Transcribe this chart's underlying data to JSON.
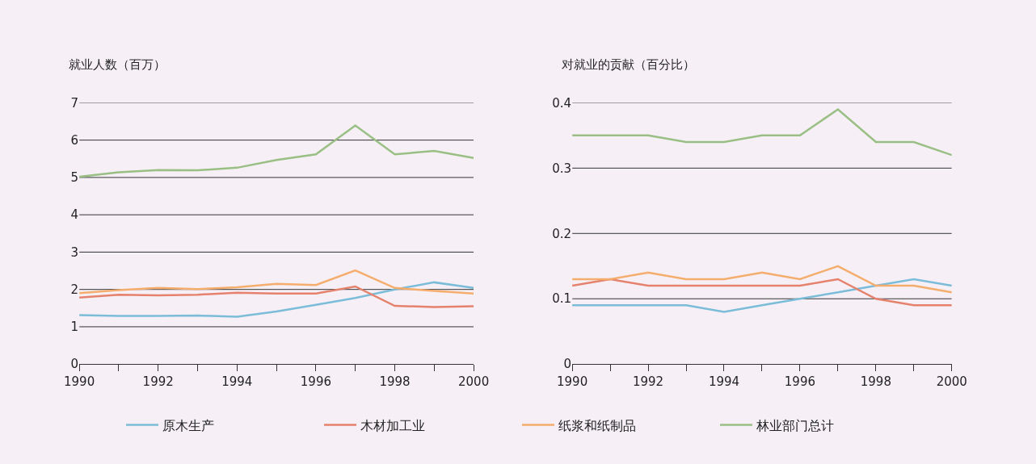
{
  "chart_data": [
    {
      "type": "line",
      "ylabel": "就业人数（百万）",
      "x": [
        1990,
        1991,
        1992,
        1993,
        1994,
        1995,
        1996,
        1997,
        1998,
        1999,
        2000
      ],
      "xlim": [
        1990,
        2000
      ],
      "xticks": [
        1990,
        {
          "value": 1991,
          "label": null
        },
        1992,
        {
          "value": 1993,
          "label": null
        },
        1994,
        {
          "value": 1995,
          "label": null
        },
        1996,
        {
          "value": 1997,
          "label": null
        },
        1998,
        {
          "value": 1999,
          "label": null
        },
        2000
      ],
      "ylim": [
        0,
        7
      ],
      "yticks": [
        0,
        1,
        2,
        3,
        4,
        5,
        6,
        7
      ],
      "grid": "y",
      "legend": "bottom",
      "marker": "none",
      "line_style": "solid",
      "series": [
        {
          "name": "原木生产",
          "color": "#7bbcd9",
          "values": [
            1.31,
            1.29,
            1.29,
            1.3,
            1.27,
            1.41,
            1.59,
            1.77,
            2.0,
            2.19,
            2.04
          ]
        },
        {
          "name": "木材加工业",
          "color": "#e5826d",
          "values": [
            1.78,
            1.86,
            1.84,
            1.86,
            1.91,
            1.89,
            1.89,
            2.08,
            1.56,
            1.53,
            1.55
          ]
        },
        {
          "name": "纸浆和纸制品",
          "color": "#f5ad6d",
          "values": [
            1.9,
            1.98,
            2.04,
            2.01,
            2.06,
            2.15,
            2.12,
            2.51,
            2.04,
            1.96,
            1.89
          ]
        },
        {
          "name": "林业部门总计",
          "color": "#99bf84",
          "values": [
            5.02,
            5.14,
            5.2,
            5.19,
            5.26,
            5.47,
            5.62,
            6.39,
            5.62,
            5.71,
            5.52
          ]
        }
      ]
    },
    {
      "type": "line",
      "ylabel": "对就业的贡献（百分比）",
      "x": [
        1990,
        1991,
        1992,
        1993,
        1994,
        1995,
        1996,
        1997,
        1998,
        1999,
        2000
      ],
      "xlim": [
        1990,
        2000
      ],
      "xticks": [
        1990,
        {
          "value": 1991,
          "label": null
        },
        1992,
        {
          "value": 1993,
          "label": null
        },
        1994,
        {
          "value": 1995,
          "label": null
        },
        1996,
        {
          "value": 1997,
          "label": null
        },
        1998,
        {
          "value": 1999,
          "label": null
        },
        2000
      ],
      "ylim": [
        0,
        0.4
      ],
      "yticks": [
        0,
        0.1,
        0.2,
        0.3,
        0.4
      ],
      "grid": "y",
      "legend": "bottom",
      "marker": "none",
      "line_style": "solid",
      "series": [
        {
          "name": "原木生产",
          "color": "#7bbcd9",
          "values": [
            0.09,
            0.09,
            0.09,
            0.09,
            0.08,
            0.09,
            0.1,
            0.11,
            0.12,
            0.13,
            0.12
          ]
        },
        {
          "name": "木材加工业",
          "color": "#e5826d",
          "values": [
            0.12,
            0.13,
            0.12,
            0.12,
            0.12,
            0.12,
            0.12,
            0.13,
            0.1,
            0.09,
            0.09
          ]
        },
        {
          "name": "纸浆和纸制品",
          "color": "#f5ad6d",
          "values": [
            0.13,
            0.13,
            0.14,
            0.13,
            0.13,
            0.14,
            0.13,
            0.15,
            0.12,
            0.12,
            0.11
          ]
        },
        {
          "name": "林业部门总计",
          "color": "#99bf84",
          "values": [
            0.35,
            0.35,
            0.35,
            0.34,
            0.34,
            0.35,
            0.35,
            0.39,
            0.34,
            0.34,
            0.32
          ]
        }
      ]
    }
  ]
}
